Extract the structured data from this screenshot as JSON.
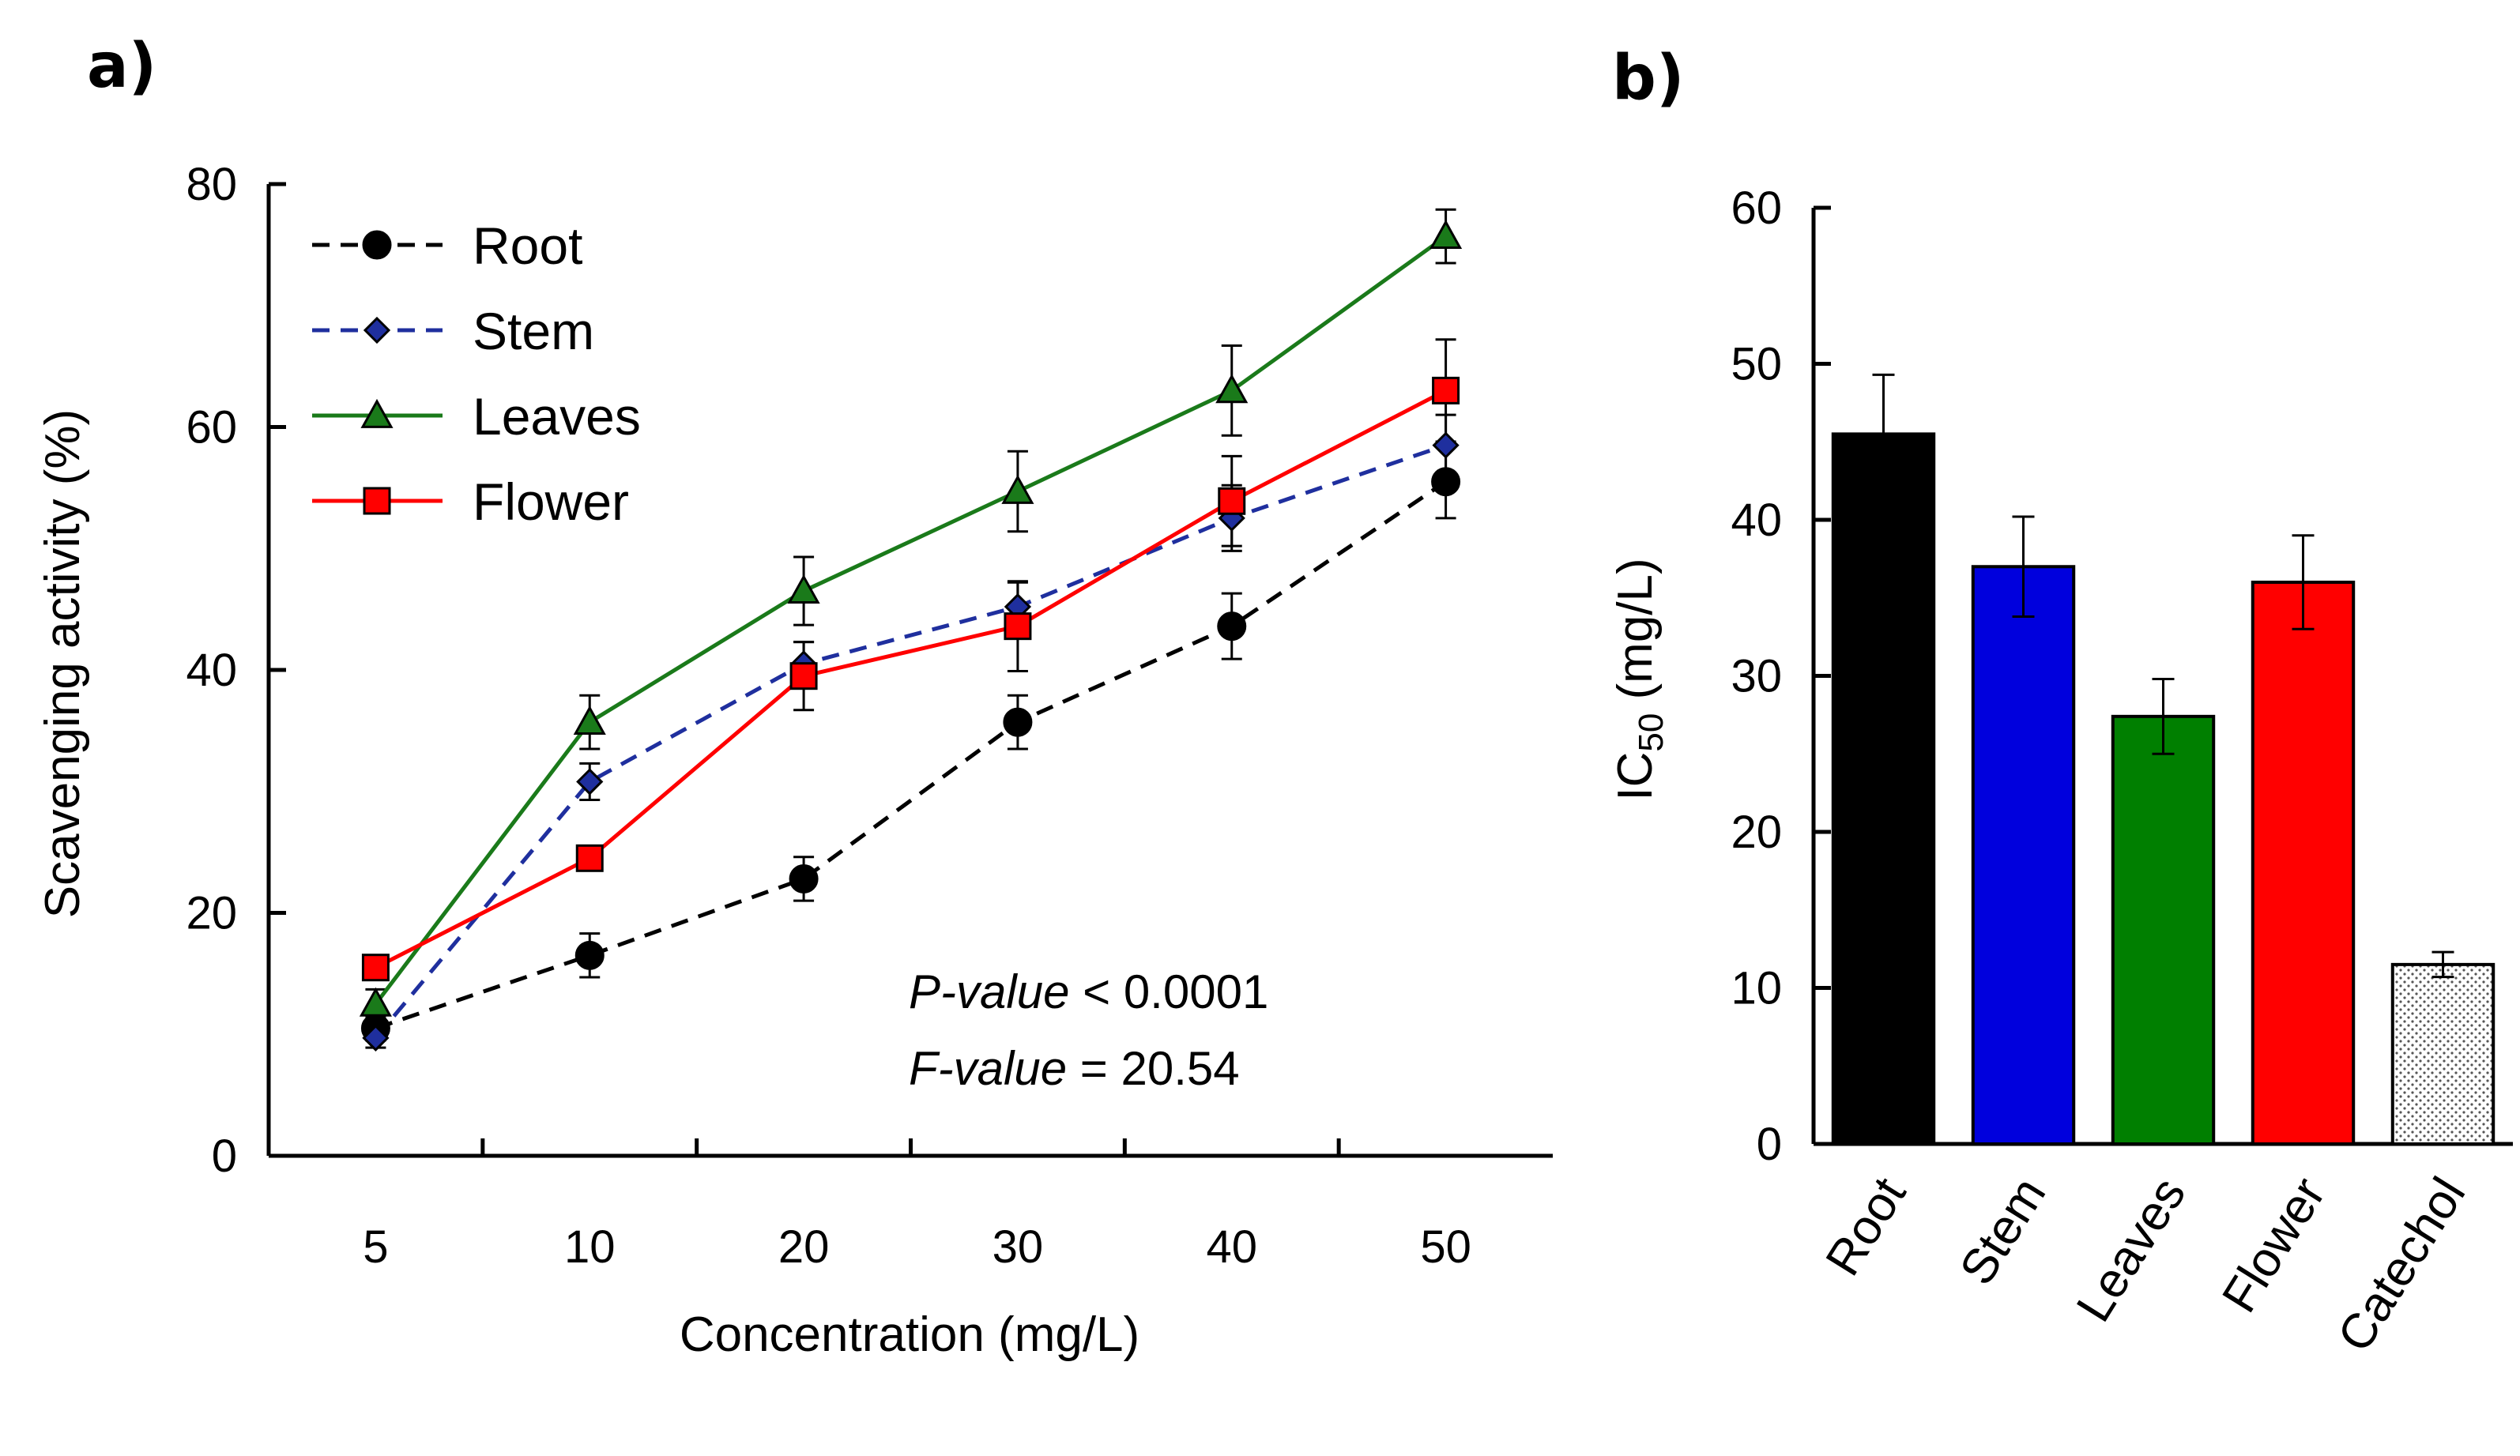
{
  "chart_data": [
    {
      "panel_label": "a)",
      "type": "line",
      "title": "",
      "xlabel": "Concentration (mg/L)",
      "ylabel": "Scavenging activity (%)",
      "categories": [
        "5",
        "10",
        "20",
        "30",
        "40",
        "50"
      ],
      "ylim": [
        0,
        80
      ],
      "yticks": [
        "0",
        "20",
        "40",
        "60",
        "80"
      ],
      "grid": false,
      "legend_position": "top-left",
      "series": [
        {
          "name": "Root",
          "color": "#000000",
          "dash": "dashed",
          "marker": "circle",
          "values": [
            10.5,
            16.5,
            22.8,
            35.7,
            43.6,
            55.5
          ],
          "errors": [
            1.0,
            1.8,
            1.8,
            2.2,
            2.7,
            3.0
          ]
        },
        {
          "name": "Stem",
          "color": "#1f2f9e",
          "dash": "dashed",
          "marker": "diamond",
          "values": [
            9.7,
            30.8,
            40.5,
            45.2,
            52.5,
            58.5
          ],
          "errors": [
            0.8,
            1.5,
            1.8,
            2.0,
            2.7,
            2.5
          ]
        },
        {
          "name": "Leaves",
          "color": "#1a7a1a",
          "dash": "solid",
          "marker": "triangle",
          "values": [
            12.5,
            35.7,
            46.5,
            54.7,
            63.0,
            75.7
          ],
          "errors": [
            1.2,
            2.2,
            2.8,
            3.3,
            3.7,
            2.2
          ]
        },
        {
          "name": "Flower",
          "color": "#ff0000",
          "dash": "solid",
          "marker": "square",
          "values": [
            15.5,
            24.5,
            39.5,
            43.6,
            53.9,
            63.0
          ],
          "errors": [
            0.8,
            1.0,
            2.8,
            3.7,
            3.7,
            4.2
          ]
        }
      ],
      "annotations": [
        {
          "italic": "P-value",
          "rest": " < 0.0001"
        },
        {
          "italic": "F-value",
          "rest": " = 20.54"
        }
      ]
    },
    {
      "panel_label": "b)",
      "type": "bar",
      "title": "",
      "xlabel": "",
      "ylabel_main": "IC",
      "ylabel_sub": "50",
      "ylabel_rest": " (mg/L)",
      "categories": [
        "Root",
        "Stem",
        "Leaves",
        "Flower",
        "Catechol"
      ],
      "values": [
        45.5,
        37.0,
        27.4,
        36.0,
        11.5
      ],
      "errors": [
        3.8,
        3.2,
        2.4,
        3.0,
        0.8
      ],
      "colors": [
        "#000000",
        "#0000dd",
        "#007f00",
        "#ff0000",
        "#f2f2f2"
      ],
      "ylim": [
        0,
        60
      ],
      "yticks": [
        "0",
        "10",
        "20",
        "30",
        "40",
        "50",
        "60"
      ],
      "grid": false
    }
  ]
}
